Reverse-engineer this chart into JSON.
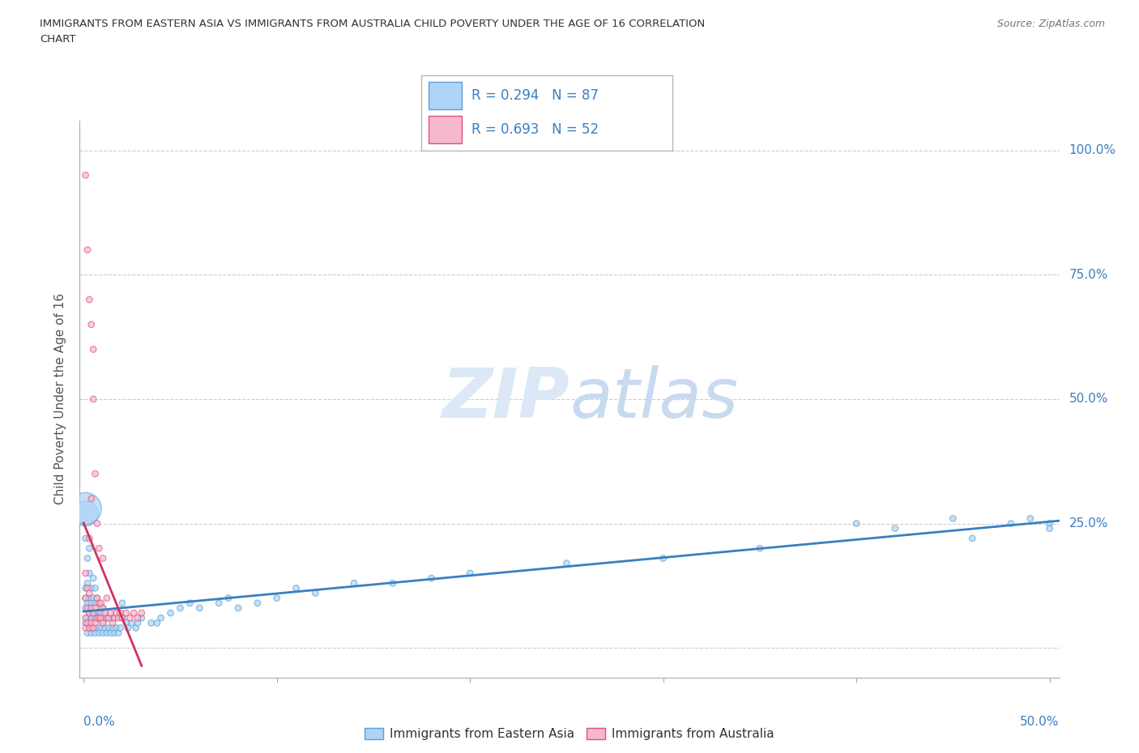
{
  "title_line1": "IMMIGRANTS FROM EASTERN ASIA VS IMMIGRANTS FROM AUSTRALIA CHILD POVERTY UNDER THE AGE OF 16 CORRELATION",
  "title_line2": "CHART",
  "source": "Source: ZipAtlas.com",
  "ylabel": "Child Poverty Under the Age of 16",
  "ytick_positions": [
    0.0,
    0.25,
    0.5,
    0.75,
    1.0
  ],
  "ytick_labels": [
    "",
    "25.0%",
    "50.0%",
    "75.0%",
    "100.0%"
  ],
  "xtick_positions": [
    0.0,
    0.1,
    0.2,
    0.3,
    0.4,
    0.5
  ],
  "xtick_labels": [
    "0.0%",
    "",
    "",
    "",
    "",
    "50.0%"
  ],
  "R_eastern_asia": 0.294,
  "N_eastern_asia": 87,
  "R_australia": 0.693,
  "N_australia": 52,
  "color_eastern_asia": "#add4f5",
  "color_australia": "#f5b8cc",
  "edge_eastern_asia": "#5aa0d8",
  "edge_australia": "#e05080",
  "line_color_eastern_asia": "#3a7fc1",
  "line_color_australia": "#d43060",
  "legend_text_color": "#3a7fc1",
  "watermark_color": "#dce8f5",
  "background_color": "#ffffff",
  "xmin": -0.002,
  "xmax": 0.505,
  "ymin": -0.06,
  "ymax": 1.06,
  "eastern_asia_x": [
    0.001,
    0.001,
    0.001,
    0.001,
    0.001,
    0.002,
    0.002,
    0.002,
    0.002,
    0.002,
    0.003,
    0.003,
    0.003,
    0.003,
    0.003,
    0.004,
    0.004,
    0.004,
    0.004,
    0.005,
    0.005,
    0.005,
    0.005,
    0.006,
    0.006,
    0.006,
    0.006,
    0.007,
    0.007,
    0.007,
    0.008,
    0.008,
    0.009,
    0.009,
    0.01,
    0.01,
    0.01,
    0.011,
    0.012,
    0.012,
    0.013,
    0.014,
    0.015,
    0.015,
    0.016,
    0.017,
    0.018,
    0.019,
    0.02,
    0.02,
    0.022,
    0.023,
    0.025,
    0.027,
    0.028,
    0.03,
    0.035,
    0.038,
    0.04,
    0.045,
    0.05,
    0.055,
    0.06,
    0.07,
    0.075,
    0.08,
    0.09,
    0.1,
    0.11,
    0.12,
    0.14,
    0.16,
    0.18,
    0.2,
    0.25,
    0.3,
    0.35,
    0.4,
    0.42,
    0.45,
    0.46,
    0.48,
    0.49,
    0.5,
    0.5,
    0.001,
    0.001
  ],
  "eastern_asia_y": [
    0.05,
    0.08,
    0.1,
    0.12,
    0.22,
    0.03,
    0.06,
    0.09,
    0.13,
    0.18,
    0.04,
    0.07,
    0.1,
    0.15,
    0.2,
    0.03,
    0.06,
    0.09,
    0.12,
    0.04,
    0.07,
    0.1,
    0.14,
    0.03,
    0.06,
    0.09,
    0.12,
    0.04,
    0.07,
    0.1,
    0.03,
    0.06,
    0.04,
    0.07,
    0.03,
    0.05,
    0.08,
    0.04,
    0.03,
    0.06,
    0.04,
    0.03,
    0.04,
    0.06,
    0.03,
    0.04,
    0.03,
    0.04,
    0.06,
    0.09,
    0.05,
    0.04,
    0.05,
    0.04,
    0.05,
    0.06,
    0.05,
    0.05,
    0.06,
    0.07,
    0.08,
    0.09,
    0.08,
    0.09,
    0.1,
    0.08,
    0.09,
    0.1,
    0.12,
    0.11,
    0.13,
    0.13,
    0.14,
    0.15,
    0.17,
    0.18,
    0.2,
    0.25,
    0.24,
    0.26,
    0.22,
    0.25,
    0.26,
    0.25,
    0.24,
    0.27,
    0.28
  ],
  "eastern_asia_sizes": [
    30,
    30,
    30,
    30,
    30,
    30,
    30,
    30,
    30,
    30,
    30,
    30,
    30,
    30,
    30,
    30,
    30,
    30,
    30,
    30,
    30,
    30,
    30,
    30,
    30,
    30,
    30,
    30,
    30,
    30,
    30,
    30,
    30,
    30,
    30,
    30,
    30,
    30,
    30,
    30,
    30,
    30,
    30,
    30,
    30,
    30,
    30,
    30,
    30,
    30,
    30,
    30,
    30,
    30,
    30,
    30,
    30,
    30,
    30,
    30,
    30,
    30,
    30,
    30,
    30,
    30,
    30,
    30,
    30,
    30,
    30,
    30,
    30,
    30,
    30,
    30,
    30,
    30,
    30,
    30,
    30,
    30,
    30,
    30,
    30,
    500,
    800
  ],
  "australia_x": [
    0.001,
    0.001,
    0.001,
    0.001,
    0.001,
    0.002,
    0.002,
    0.002,
    0.002,
    0.003,
    0.003,
    0.003,
    0.003,
    0.003,
    0.004,
    0.004,
    0.004,
    0.004,
    0.005,
    0.005,
    0.005,
    0.005,
    0.006,
    0.006,
    0.006,
    0.007,
    0.007,
    0.007,
    0.008,
    0.008,
    0.008,
    0.009,
    0.009,
    0.01,
    0.01,
    0.01,
    0.011,
    0.012,
    0.012,
    0.013,
    0.014,
    0.015,
    0.016,
    0.017,
    0.018,
    0.019,
    0.02,
    0.022,
    0.024,
    0.026,
    0.028,
    0.03
  ],
  "australia_y": [
    0.04,
    0.06,
    0.1,
    0.15,
    0.95,
    0.05,
    0.08,
    0.12,
    0.8,
    0.04,
    0.07,
    0.11,
    0.22,
    0.7,
    0.05,
    0.08,
    0.3,
    0.65,
    0.04,
    0.07,
    0.5,
    0.6,
    0.05,
    0.08,
    0.35,
    0.06,
    0.1,
    0.25,
    0.06,
    0.09,
    0.2,
    0.06,
    0.09,
    0.05,
    0.08,
    0.18,
    0.07,
    0.06,
    0.1,
    0.06,
    0.07,
    0.05,
    0.06,
    0.07,
    0.06,
    0.07,
    0.06,
    0.07,
    0.06,
    0.07,
    0.06,
    0.07
  ],
  "australia_sizes": [
    30,
    30,
    30,
    30,
    30,
    30,
    30,
    30,
    30,
    30,
    30,
    30,
    30,
    30,
    30,
    30,
    30,
    30,
    30,
    30,
    30,
    30,
    30,
    30,
    30,
    30,
    30,
    30,
    30,
    30,
    30,
    30,
    30,
    30,
    30,
    30,
    30,
    30,
    30,
    30,
    30,
    30,
    30,
    30,
    30,
    30,
    30,
    30,
    30,
    30,
    30,
    30
  ]
}
